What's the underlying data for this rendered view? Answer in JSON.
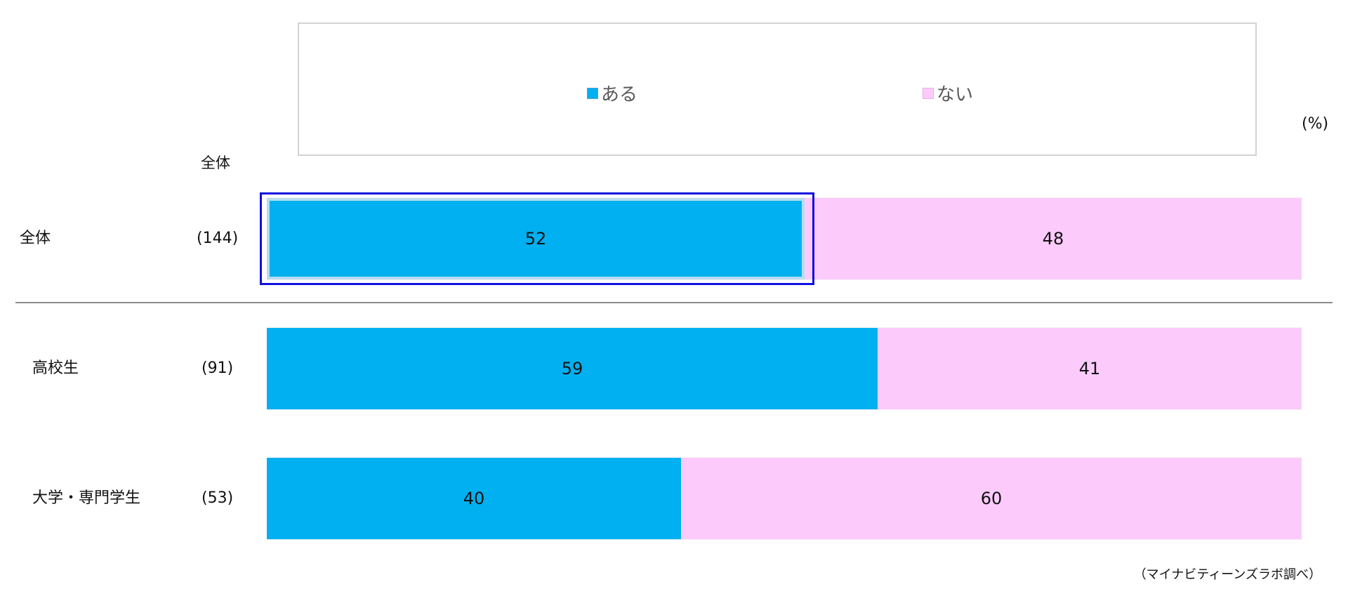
{
  "chart_data": {
    "type": "bar",
    "orientation": "horizontal",
    "stacked": true,
    "categories": [
      "全体",
      "高校生",
      "大学・専門学生"
    ],
    "sample_sizes": [
      "(144)",
      "(91)",
      "(53)"
    ],
    "series": [
      {
        "name": "ある",
        "values": [
          52,
          59,
          40
        ]
      },
      {
        "name": "ない",
        "values": [
          48,
          41,
          60
        ]
      }
    ],
    "column_header": "全体",
    "unit_label": "(%)",
    "xlim": [
      0,
      100
    ],
    "legend_position": "top",
    "grid": false,
    "source": "（マイナビティーンズラボ調べ）"
  },
  "colors": {
    "series": [
      "#00b0f0",
      "#fccbfc"
    ],
    "highlight": "#1010e0",
    "divider": "#8c8c8c"
  }
}
